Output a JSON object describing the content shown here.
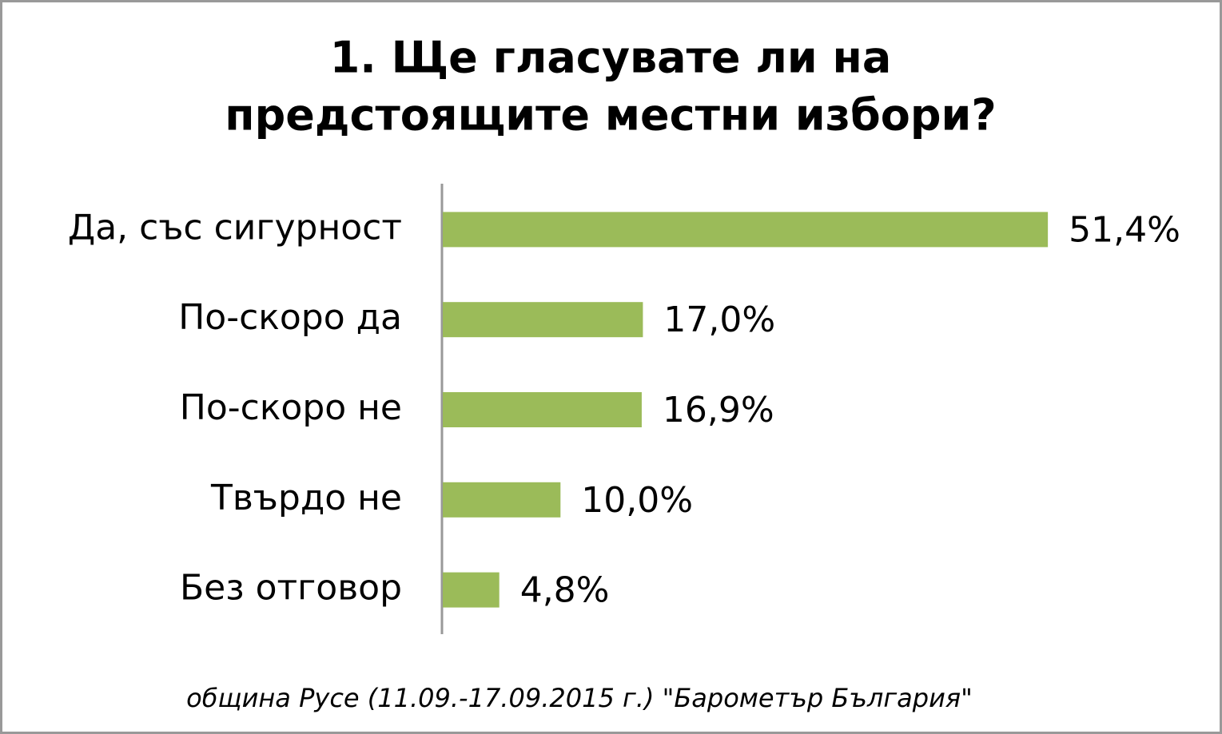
{
  "chart_data": {
    "type": "bar",
    "orientation": "horizontal",
    "title": [
      "1. Ще гласувате ли на",
      "предстоящите местни избори?"
    ],
    "categories": [
      "Да, със сигурност",
      "По-скоро да",
      "По-скоро не",
      "Твърдо не",
      "Без отговор"
    ],
    "values": [
      51.4,
      17.0,
      16.9,
      10.0,
      4.8
    ],
    "value_labels": [
      "51,4%",
      "17,0%",
      "16,9%",
      "10,0%",
      "4,8%"
    ],
    "color": "#9bbb59",
    "source": "община Русе (11.09.-17.09.2015 г.) \"Барометър България\""
  }
}
